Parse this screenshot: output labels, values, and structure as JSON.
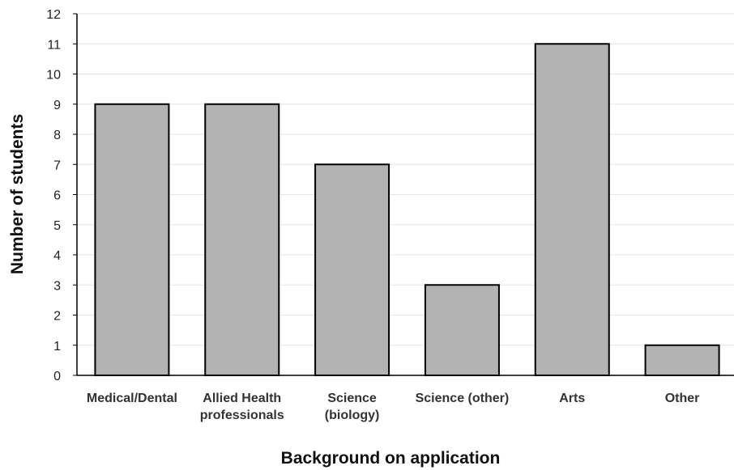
{
  "chart_data": {
    "type": "bar",
    "title": "",
    "xlabel": "Background on application",
    "ylabel": "Number of students",
    "categories": [
      [
        "Medical/Dental"
      ],
      [
        "Allied Health",
        "professionals"
      ],
      [
        "Science",
        "(biology)"
      ],
      [
        "Science (other)"
      ],
      [
        "Arts"
      ],
      [
        "Other"
      ]
    ],
    "values": [
      9,
      9,
      7,
      3,
      11,
      1
    ],
    "ylim": [
      0,
      12
    ],
    "yticks": [
      0,
      1,
      2,
      3,
      4,
      5,
      6,
      7,
      8,
      9,
      10,
      11,
      12
    ],
    "grid": true,
    "legend": "none",
    "colors": {
      "bar_fill": "#b3b3b3",
      "bar_stroke": "#000000",
      "grid": "#e6e6e6",
      "axis": "#000000"
    }
  }
}
